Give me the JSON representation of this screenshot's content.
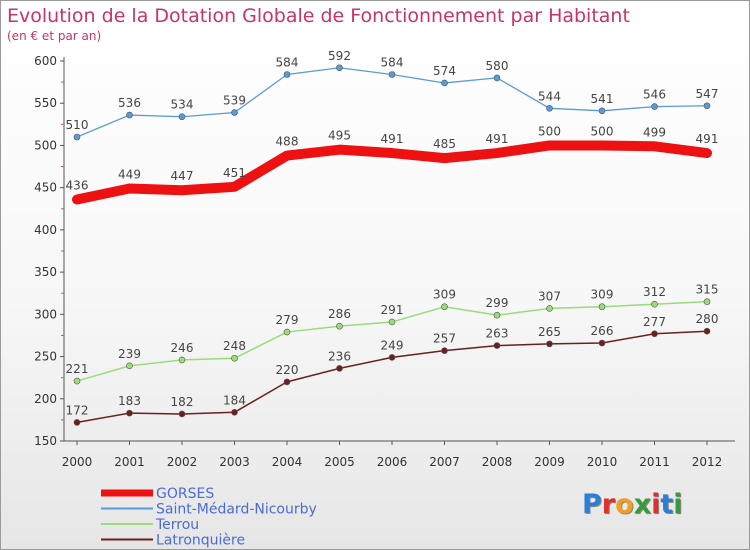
{
  "title": "Evolution de la Dotation Globale de Fonctionnement par Habitant",
  "subtitle": "(en € et par an)",
  "logo": {
    "text": "Proxiti",
    "letters": [
      "P",
      "r",
      "o",
      "x",
      "i",
      "t",
      "i"
    ],
    "colors": [
      "#2a7fd4",
      "#e0302a",
      "#f0a020",
      "#3a9a3a",
      "#e0302a",
      "#2a7fd4",
      "#3a9a3a"
    ]
  },
  "chart_data": {
    "type": "line",
    "title": "Evolution de la Dotation Globale de Fonctionnement par Habitant",
    "subtitle": "(en € et par an)",
    "xlabel": "",
    "ylabel": "",
    "x": [
      "2000",
      "2001",
      "2002",
      "2003",
      "2004",
      "2005",
      "2006",
      "2007",
      "2008",
      "2009",
      "2010",
      "2011",
      "2012"
    ],
    "ylim": [
      150,
      600
    ],
    "yticks": [
      150,
      200,
      250,
      300,
      350,
      400,
      450,
      500,
      550,
      600
    ],
    "grid": false,
    "legend_position": "bottom-left",
    "series": [
      {
        "name": "GORSES",
        "color": "#ee1111",
        "values": [
          436,
          449,
          447,
          451,
          488,
          495,
          491,
          485,
          491,
          500,
          500,
          499,
          491
        ]
      },
      {
        "name": "Saint-Médard-Nicourby",
        "color": "#5b9bd5",
        "values": [
          510,
          536,
          534,
          539,
          584,
          592,
          584,
          574,
          580,
          544,
          541,
          546,
          547
        ]
      },
      {
        "name": "Terrou",
        "color": "#99dd77",
        "values": [
          221,
          239,
          246,
          248,
          279,
          286,
          291,
          309,
          299,
          307,
          309,
          312,
          315
        ]
      },
      {
        "name": "Latronquière",
        "color": "#6b1f1f",
        "values": [
          172,
          183,
          182,
          184,
          220,
          236,
          249,
          257,
          263,
          265,
          266,
          277,
          280
        ]
      }
    ]
  }
}
